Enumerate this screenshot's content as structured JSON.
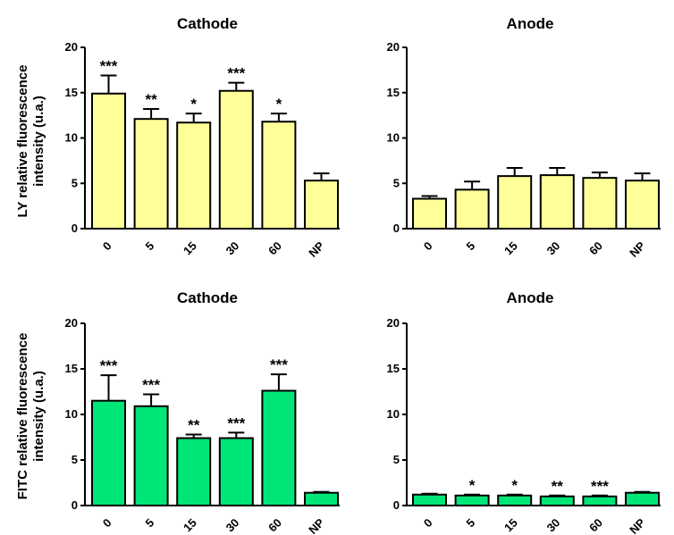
{
  "chart_data": [
    {
      "type": "bar",
      "title": "Cathode",
      "ylabel": "LY relative fluorescence intensity (u.a.)",
      "categories": [
        "0",
        "5",
        "15",
        "30",
        "60",
        "NP"
      ],
      "values": [
        14.9,
        12.1,
        11.7,
        15.2,
        11.8,
        5.3
      ],
      "errors": [
        2.0,
        1.1,
        1.0,
        0.9,
        0.9,
        0.8
      ],
      "significance": [
        "***",
        "**",
        "*",
        "***",
        "*",
        ""
      ],
      "ylim": [
        0,
        20
      ],
      "yticks": [
        "0",
        "5",
        "10",
        "15",
        "20"
      ],
      "bar_color": "#ffff99"
    },
    {
      "type": "bar",
      "title": "Anode",
      "ylabel": "",
      "categories": [
        "0",
        "5",
        "15",
        "30",
        "60",
        "NP"
      ],
      "values": [
        3.3,
        4.3,
        5.8,
        5.9,
        5.6,
        5.3
      ],
      "errors": [
        0.3,
        0.9,
        0.9,
        0.8,
        0.6,
        0.8
      ],
      "significance": [
        "",
        "",
        "",
        "",
        "",
        ""
      ],
      "ylim": [
        0,
        20
      ],
      "yticks": [
        "0",
        "5",
        "10",
        "15",
        "20"
      ],
      "bar_color": "#ffff99"
    },
    {
      "type": "bar",
      "title": "Cathode",
      "ylabel": "FITC relative fluorescence intensity (u.a.)",
      "categories": [
        "0",
        "5",
        "15",
        "30",
        "60",
        "NP"
      ],
      "values": [
        11.5,
        10.9,
        7.4,
        7.4,
        12.6,
        1.4
      ],
      "errors": [
        2.8,
        1.3,
        0.4,
        0.6,
        1.8,
        0.1
      ],
      "significance": [
        "***",
        "***",
        "**",
        "***",
        "***",
        ""
      ],
      "ylim": [
        0,
        20
      ],
      "yticks": [
        "0",
        "5",
        "10",
        "15",
        "20"
      ],
      "bar_color": "#00e676"
    },
    {
      "type": "bar",
      "title": "Anode",
      "ylabel": "",
      "categories": [
        "0",
        "5",
        "15",
        "30",
        "60",
        "NP"
      ],
      "values": [
        1.2,
        1.1,
        1.1,
        1.0,
        1.0,
        1.4
      ],
      "errors": [
        0.1,
        0.1,
        0.1,
        0.1,
        0.1,
        0.1
      ],
      "significance": [
        "",
        "*",
        "*",
        "**",
        "***",
        ""
      ],
      "ylim": [
        0,
        20
      ],
      "yticks": [
        "0",
        "5",
        "10",
        "15",
        "20"
      ],
      "bar_color": "#00e676"
    }
  ],
  "ylabel_lines": [
    [
      "LY relative fluorescence",
      "intensity (u.a.)"
    ],
    [
      "FITC relative fluorescence",
      "intensity (u.a.)"
    ]
  ]
}
